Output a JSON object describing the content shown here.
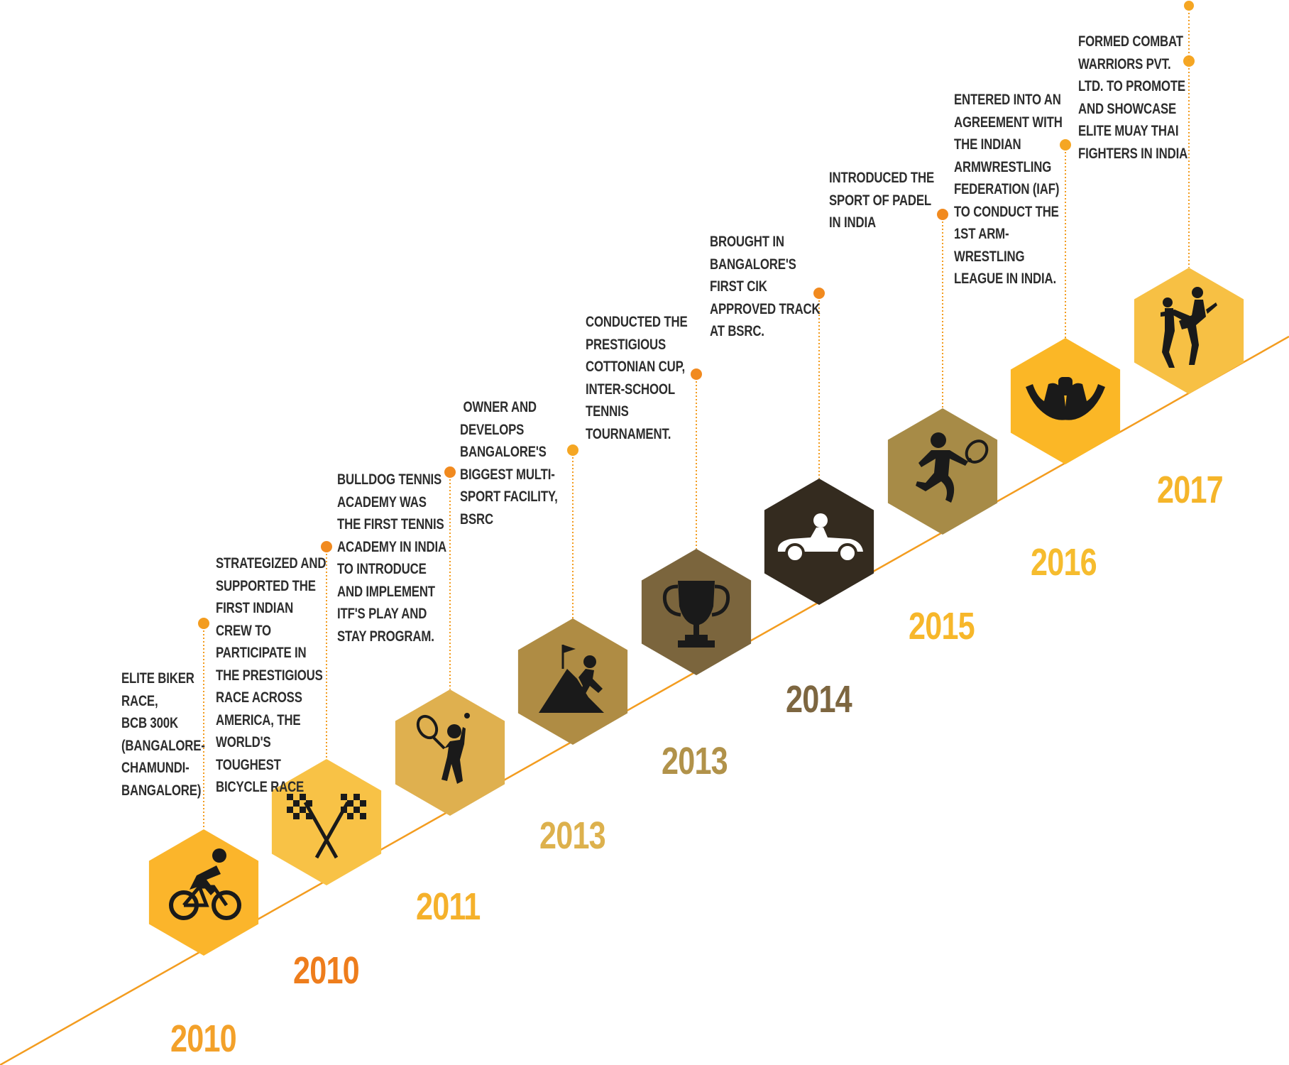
{
  "milestones": [
    {
      "year": "2010",
      "description": [
        "ELITE BIKER",
        "RACE,",
        "BCB 300K",
        "(BANGALORE-",
        "CHAMUNDI-",
        "BANGALORE)"
      ],
      "hex_color": "#FBB52B",
      "year_color": "#F3A12A",
      "dot_color": "#F39C1F",
      "icon": "cyclist-icon"
    },
    {
      "year": "2010",
      "description": [
        "STRATEGIZED AND",
        "SUPPORTED THE",
        "FIRST INDIAN",
        "CREW TO",
        "PARTICIPATE IN",
        "THE PRESTIGIOUS",
        "RACE ACROSS",
        "AMERICA, THE",
        "WORLD'S",
        "TOUGHEST",
        "BICYCLE RACE"
      ],
      "hex_color": "#F8C246",
      "year_color": "#EE7D1C",
      "dot_color": "#F18A1F",
      "icon": "checkered-flags-icon"
    },
    {
      "year": "2011",
      "description": [
        "BULLDOG TENNIS",
        "ACADEMY WAS",
        "THE FIRST TENNIS",
        "ACADEMY IN INDIA",
        "TO INTRODUCE",
        "AND IMPLEMENT",
        "ITF'S PLAY AND",
        "STAY PROGRAM."
      ],
      "hex_color": "#DFB04F",
      "year_color": "#F5B12B",
      "dot_color": "#F18A1F",
      "icon": "tennis-player-icon"
    },
    {
      "year": "2013",
      "description": [
        " OWNER AND",
        "DEVELOPS",
        "BANGALORE'S",
        "BIGGEST MULTI-",
        "SPORT FACILITY,",
        "BSRC"
      ],
      "hex_color": "#AF8C44",
      "year_color": "#DDB14D",
      "dot_color": "#F5A623",
      "icon": "mountain-climber-icon"
    },
    {
      "year": "2013",
      "description": [
        "CONDUCTED THE",
        "PRESTIGIOUS",
        "COTTONIAN CUP,",
        "INTER-SCHOOL",
        "TENNIS",
        "TOURNAMENT."
      ],
      "hex_color": "#7B653D",
      "year_color": "#B1924A",
      "dot_color": "#F18A1F",
      "icon": "trophy-icon"
    },
    {
      "year": "2014",
      "description": [
        "BROUGHT IN",
        "BANGALORE'S",
        "FIRST CIK",
        "APPROVED TRACK",
        "AT BSRC."
      ],
      "hex_color": "#342B1F",
      "year_color": "#7D6640",
      "dot_color": "#F18A1F",
      "icon": "go-kart-icon"
    },
    {
      "year": "2015",
      "description": [
        "INTRODUCED THE",
        "SPORT OF PADEL",
        "IN INDIA"
      ],
      "hex_color": "#A78B47",
      "year_color": "#F7B72A",
      "dot_color": "#F18A1F",
      "icon": "padel-player-icon"
    },
    {
      "year": "2016",
      "description": [
        "ENTERED INTO AN",
        "AGREEMENT WITH",
        "THE INDIAN",
        "ARMWRESTLING",
        "FEDERATION (IAF)",
        "TO CONDUCT THE",
        "1ST ARM-",
        "WRESTLING",
        "LEAGUE IN INDIA."
      ],
      "hex_color": "#FBB726",
      "year_color": "#F6BC2E",
      "dot_color": "#F5A623",
      "icon": "arm-wrestling-icon"
    },
    {
      "year": "2017",
      "description": [
        "FORMED COMBAT",
        "WARRIORS PVT.",
        "LTD. TO PROMOTE",
        "AND SHOWCASE",
        "ELITE MUAY THAI",
        "FIGHTERS IN INDIA"
      ],
      "hex_color": "#F7C044",
      "year_color": "#F5B52A",
      "dot_color": "#F5A623",
      "icon": "muay-thai-icon"
    }
  ],
  "colors": {
    "timeline_line": "#F39C1F",
    "connector": "#F39C1F",
    "icon": "#1A1A1A",
    "icon_on_dark": "#FFFFFF",
    "text": "#2D2D2D"
  }
}
